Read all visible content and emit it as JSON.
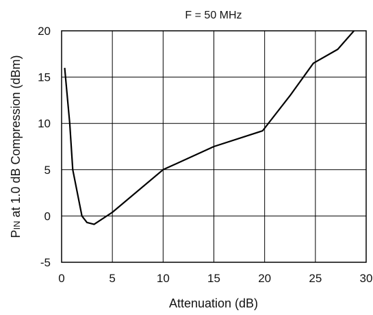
{
  "chart_data": {
    "type": "line",
    "title": "F = 50 MHz",
    "xlabel": "Attenuation (dB)",
    "ylabel_main": "P",
    "ylabel_sub": "IN",
    "ylabel_rest": " at 1.0 dB Compression (dBm)",
    "xlim": [
      0,
      30
    ],
    "ylim": [
      -5,
      20
    ],
    "xticks": [
      0,
      5,
      10,
      15,
      20,
      25,
      30
    ],
    "yticks": [
      -5,
      0,
      5,
      10,
      15,
      20
    ],
    "grid": true,
    "series": [
      {
        "x": [
          0.3,
          0.8,
          1.1,
          2.0,
          2.5,
          3.2,
          5.0,
          10.0,
          15.0,
          19.8,
          22.5,
          24.8,
          27.2,
          28.8
        ],
        "y": [
          16.0,
          10.0,
          5.0,
          0.0,
          -0.7,
          -0.9,
          0.4,
          5.0,
          7.5,
          9.2,
          13.0,
          16.5,
          18.0,
          20.0
        ]
      }
    ]
  }
}
